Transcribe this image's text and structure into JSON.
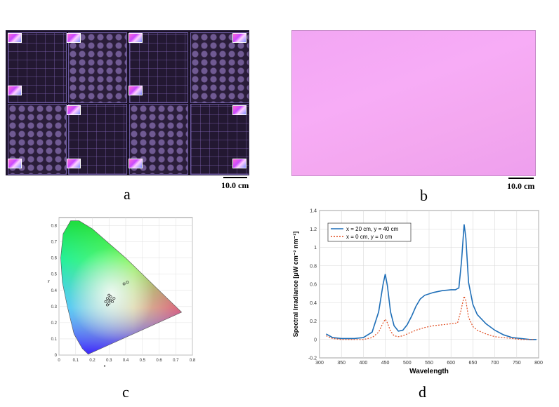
{
  "panels": {
    "a": {
      "letter": "a",
      "scale": "10.0 cm"
    },
    "b": {
      "letter": "b",
      "scale": "10.0 cm"
    },
    "c": {
      "letter": "c"
    },
    "d": {
      "letter": "d"
    }
  },
  "chart_data": [
    {
      "type": "scatter",
      "panel": "c",
      "title": "",
      "xlabel": "x",
      "ylabel": "y",
      "xlim": [
        0,
        0.8
      ],
      "ylim": [
        0,
        0.85
      ],
      "x_ticks": [
        "0",
        "0.1",
        "0.2",
        "0.3",
        "0.4",
        "0.5",
        "0.6",
        "0.7",
        "0.8"
      ],
      "y_ticks": [
        "0",
        "0.1",
        "0.2",
        "0.3",
        "0.4",
        "0.5",
        "0.6",
        "0.7",
        "0.8"
      ],
      "grid": true,
      "points": [
        {
          "x": 0.28,
          "y": 0.33
        },
        {
          "x": 0.29,
          "y": 0.35
        },
        {
          "x": 0.3,
          "y": 0.34
        },
        {
          "x": 0.31,
          "y": 0.36
        },
        {
          "x": 0.3,
          "y": 0.32
        },
        {
          "x": 0.32,
          "y": 0.33
        },
        {
          "x": 0.29,
          "y": 0.31
        },
        {
          "x": 0.31,
          "y": 0.34
        },
        {
          "x": 0.33,
          "y": 0.35
        },
        {
          "x": 0.3,
          "y": 0.37
        },
        {
          "x": 0.39,
          "y": 0.44
        },
        {
          "x": 0.41,
          "y": 0.45
        }
      ]
    },
    {
      "type": "line",
      "panel": "d",
      "title": "",
      "xlabel": "Wavelength",
      "ylabel": "Spectral Irradiance [μW cm⁻² nm⁻¹]",
      "xlim": [
        300,
        800
      ],
      "ylim": [
        -0.2,
        1.4
      ],
      "x_ticks": [
        "300",
        "350",
        "400",
        "450",
        "500",
        "550",
        "600",
        "650",
        "700",
        "750",
        "800"
      ],
      "y_ticks": [
        "-0.2",
        "0",
        "0.2",
        "0.4",
        "0.6",
        "0.8",
        "1",
        "1.2",
        "1.4"
      ],
      "grid": true,
      "legend_position": "top-left",
      "series": [
        {
          "name": "x = 20 cm,  y = 40 cm",
          "color": "#1f6fb8",
          "dash": "solid",
          "points": [
            [
              315,
              0.06
            ],
            [
              330,
              0.02
            ],
            [
              350,
              0.01
            ],
            [
              380,
              0.01
            ],
            [
              400,
              0.02
            ],
            [
              420,
              0.08
            ],
            [
              435,
              0.3
            ],
            [
              445,
              0.6
            ],
            [
              450,
              0.71
            ],
            [
              455,
              0.58
            ],
            [
              462,
              0.3
            ],
            [
              470,
              0.15
            ],
            [
              480,
              0.09
            ],
            [
              490,
              0.1
            ],
            [
              500,
              0.16
            ],
            [
              510,
              0.25
            ],
            [
              520,
              0.36
            ],
            [
              530,
              0.44
            ],
            [
              540,
              0.48
            ],
            [
              560,
              0.51
            ],
            [
              580,
              0.53
            ],
            [
              600,
              0.54
            ],
            [
              610,
              0.54
            ],
            [
              618,
              0.56
            ],
            [
              624,
              0.85
            ],
            [
              630,
              1.25
            ],
            [
              634,
              1.1
            ],
            [
              640,
              0.62
            ],
            [
              650,
              0.38
            ],
            [
              660,
              0.27
            ],
            [
              680,
              0.17
            ],
            [
              700,
              0.1
            ],
            [
              720,
              0.05
            ],
            [
              740,
              0.02
            ],
            [
              760,
              0.01
            ],
            [
              780,
              0.0
            ],
            [
              795,
              0.0
            ]
          ]
        },
        {
          "name": "x = 0 cm,  y = 0 cm",
          "color": "#e04b1f",
          "dash": "dotted",
          "points": [
            [
              315,
              0.04
            ],
            [
              330,
              0.01
            ],
            [
              350,
              0.0
            ],
            [
              400,
              0.0
            ],
            [
              420,
              0.02
            ],
            [
              435,
              0.08
            ],
            [
              445,
              0.18
            ],
            [
              450,
              0.22
            ],
            [
              455,
              0.18
            ],
            [
              462,
              0.09
            ],
            [
              470,
              0.04
            ],
            [
              480,
              0.03
            ],
            [
              490,
              0.04
            ],
            [
              500,
              0.06
            ],
            [
              520,
              0.1
            ],
            [
              540,
              0.13
            ],
            [
              560,
              0.15
            ],
            [
              580,
              0.16
            ],
            [
              600,
              0.17
            ],
            [
              615,
              0.18
            ],
            [
              622,
              0.3
            ],
            [
              630,
              0.47
            ],
            [
              634,
              0.42
            ],
            [
              640,
              0.24
            ],
            [
              650,
              0.14
            ],
            [
              660,
              0.1
            ],
            [
              680,
              0.06
            ],
            [
              700,
              0.03
            ],
            [
              720,
              0.02
            ],
            [
              740,
              0.01
            ],
            [
              760,
              0.0
            ],
            [
              790,
              0.0
            ]
          ]
        }
      ]
    }
  ]
}
